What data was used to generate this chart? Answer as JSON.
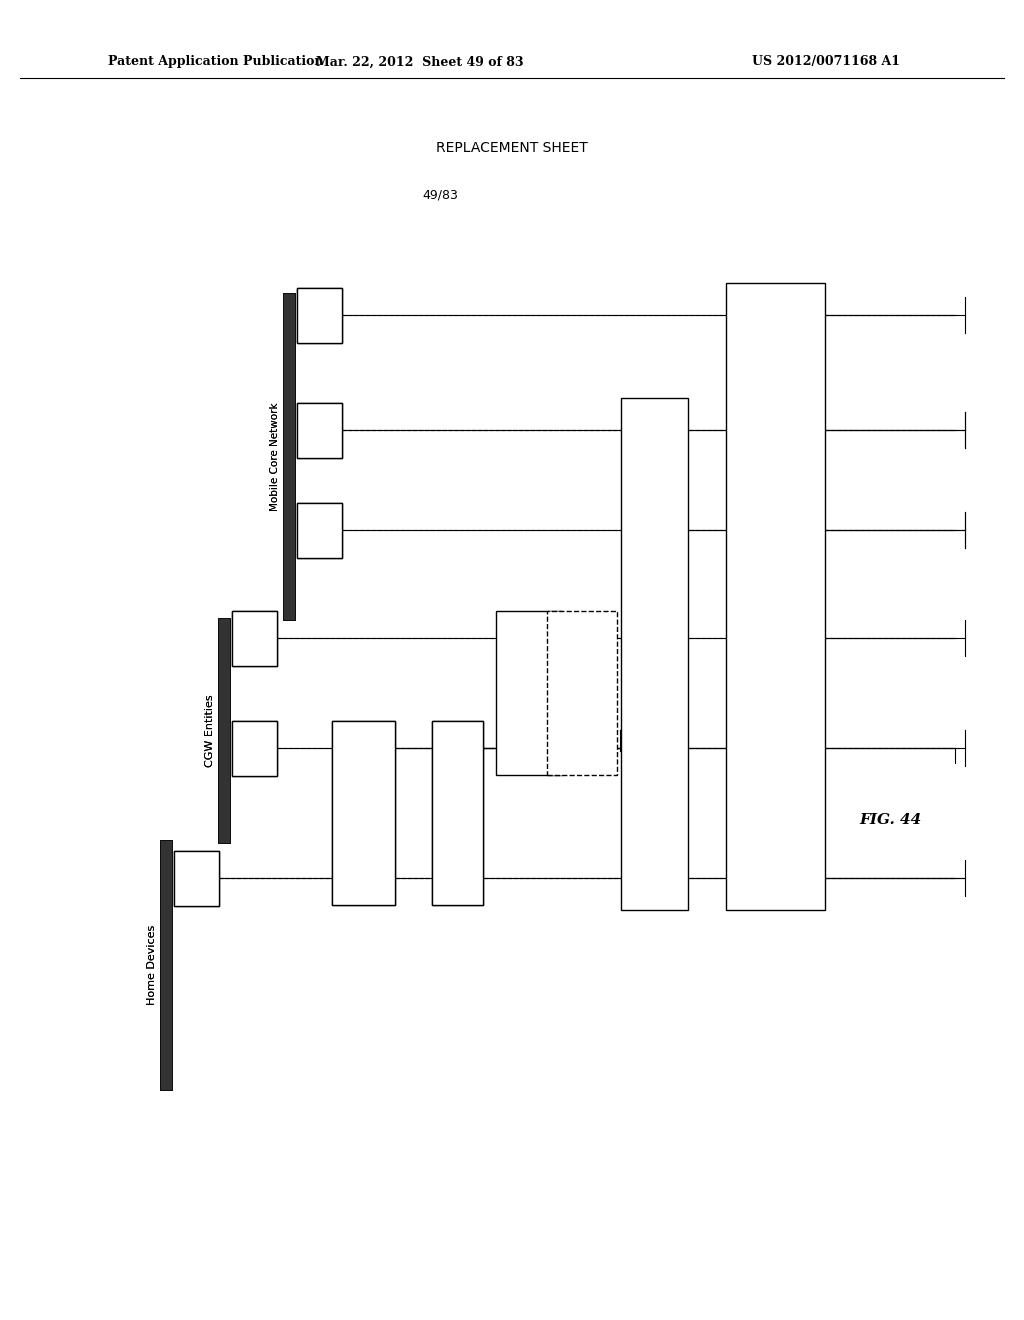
{
  "header_left": "Patent Application Publication",
  "header_mid": "Mar. 22, 2012  Sheet 49 of 83",
  "header_right": "US 2012/0071168 A1",
  "replacement_sheet": "REPLACEMENT SHEET",
  "page_num": "49/83",
  "fig_label": "FIG. 44",
  "bg_color": "#ffffff"
}
